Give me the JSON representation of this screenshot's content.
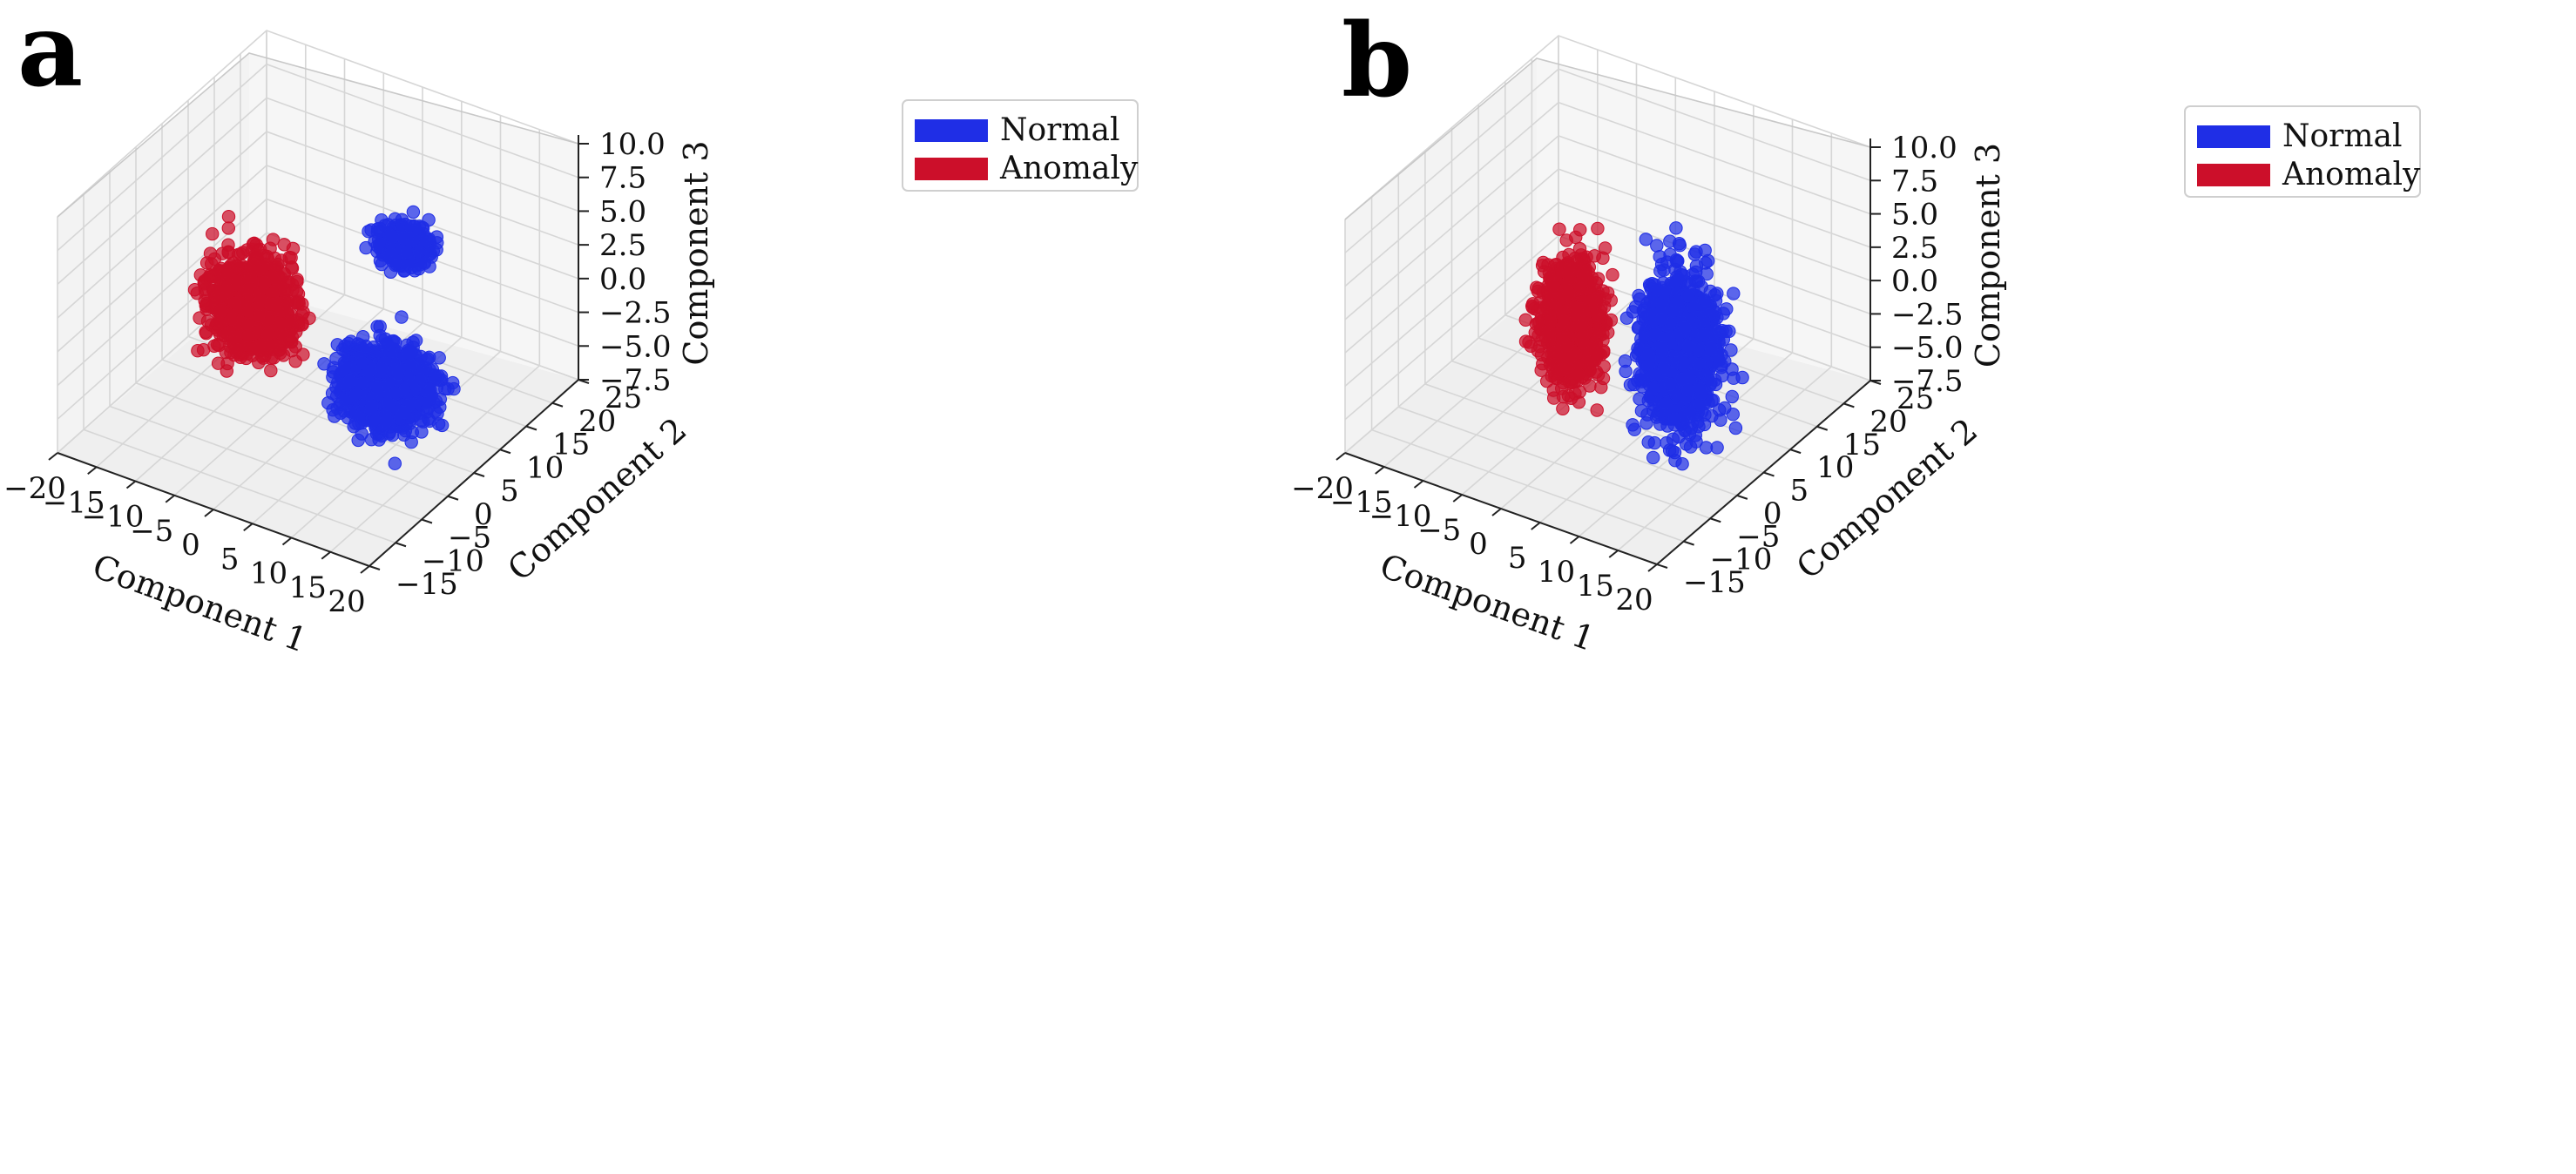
{
  "figure": {
    "background": "#ffffff"
  },
  "colors": {
    "normal": "#1f2ee6",
    "anomaly": "#cc0f2a",
    "pane": "#f4f4f4",
    "grid": "#d6d6d6",
    "axis": "#222222"
  },
  "chart_data": [
    {
      "panel_label": "a",
      "type": "scatter",
      "projection": "3d",
      "title": "",
      "xlabel": "Component 1",
      "ylabel": "Component 2",
      "zlabel": "Component 3",
      "x_ticks": [
        "−20",
        "−15",
        "−10",
        "−5",
        "0",
        "5",
        "10",
        "15",
        "20"
      ],
      "y_ticks": [
        "−15",
        "−10",
        "−5",
        "0",
        "5",
        "10",
        "15",
        "20",
        "25"
      ],
      "z_ticks": [
        "10.0",
        "7.5",
        "5.0",
        "2.5",
        "0.0",
        "−2.5",
        "−5.0",
        "−7.5"
      ],
      "xlim": [
        -20,
        20
      ],
      "ylim": [
        -15,
        25
      ],
      "zlim": [
        -7.5,
        10
      ],
      "grid": true,
      "legend_position": "top-right",
      "legend": [
        "Normal",
        "Anomaly"
      ],
      "series": [
        {
          "name": "Normal",
          "color": "#1f2ee6",
          "n_points": 1500,
          "clusters": [
            {
              "center": [
                10,
                3,
                -2.5
              ],
              "spread": [
                4.2,
                3.5,
                2.2
              ]
            },
            {
              "center": [
                9,
                8,
                6
              ],
              "spread": [
                2.6,
                2.0,
                1.1
              ]
            }
          ]
        },
        {
          "name": "Anomaly",
          "color": "#cc0f2a",
          "n_points": 1200,
          "clusters": [
            {
              "center": [
                -7,
                3,
                0
              ],
              "spread": [
                4.2,
                3.0,
                3.0
              ]
            }
          ]
        }
      ]
    },
    {
      "panel_label": "b",
      "type": "scatter",
      "projection": "3d",
      "title": "",
      "xlabel": "Component 1",
      "ylabel": "Component 2",
      "zlabel": "Component 3",
      "x_ticks": [
        "−20",
        "−15",
        "−10",
        "−5",
        "0",
        "5",
        "10",
        "15",
        "20"
      ],
      "y_ticks": [
        "−15",
        "−10",
        "−5",
        "0",
        "5",
        "10",
        "15",
        "20",
        "25"
      ],
      "z_ticks": [
        "10.0",
        "7.5",
        "5.0",
        "2.5",
        "0.0",
        "−2.5",
        "−5.0",
        "−7.5"
      ],
      "xlim": [
        -20,
        20
      ],
      "ylim": [
        -15,
        25
      ],
      "zlim": [
        -7.5,
        10
      ],
      "grid": true,
      "legend_position": "top-right",
      "legend": [
        "Normal",
        "Anomaly"
      ],
      "series": [
        {
          "name": "Normal",
          "color": "#1f2ee6",
          "n_points": 1400,
          "clusters": [
            {
              "center": [
                10,
                4,
                0
              ],
              "spread": [
                3.6,
                3.6,
                4.6
              ]
            }
          ]
        },
        {
          "name": "Anomaly",
          "color": "#cc0f2a",
          "n_points": 1100,
          "clusters": [
            {
              "center": [
                -4,
                4,
                -1
              ],
              "spread": [
                3.0,
                2.5,
                3.8
              ]
            }
          ]
        }
      ]
    }
  ]
}
